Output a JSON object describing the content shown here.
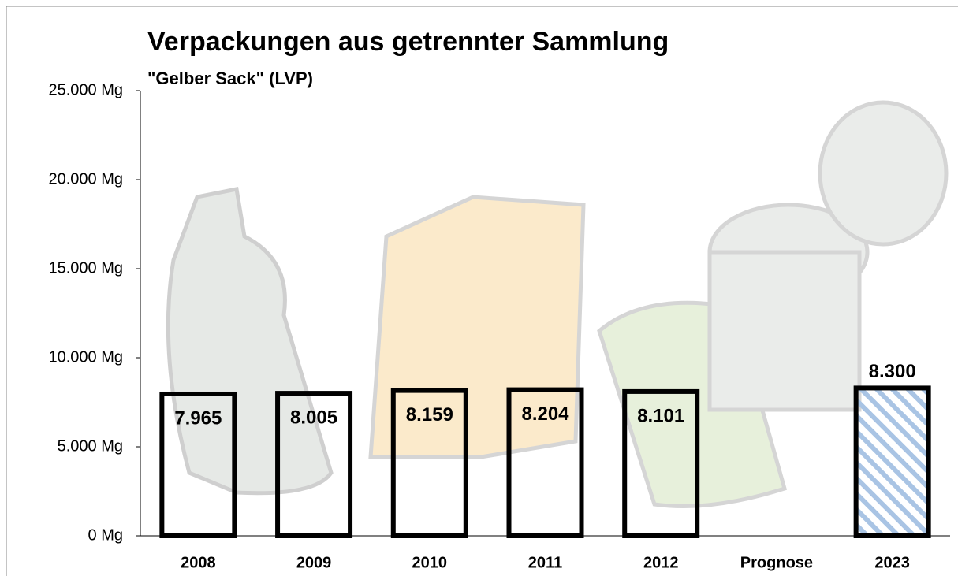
{
  "chart_data": {
    "type": "bar",
    "title": "Verpackungen aus getrennter Sammlung",
    "subtitle": "\"Gelber Sack\" (LVP)",
    "categories": [
      "2008",
      "2009",
      "2010",
      "2011",
      "2012",
      "Prognose",
      "2023"
    ],
    "values": [
      7965,
      8005,
      8159,
      8204,
      8101,
      null,
      8300
    ],
    "value_labels": [
      "7.965",
      "8.005",
      "8.159",
      "8.204",
      "8.101",
      null,
      "8.300"
    ],
    "colors": [
      "transparent",
      "transparent",
      "transparent",
      "transparent",
      "transparent",
      null,
      "#a9c4e4"
    ],
    "ylim": [
      0,
      25000
    ],
    "yticks": [
      {
        "value": 0,
        "label": "0 Mg"
      },
      {
        "value": 5000,
        "label": "5.000 Mg"
      },
      {
        "value": 10000,
        "label": "10.000 Mg"
      },
      {
        "value": 15000,
        "label": "15.000 Mg"
      },
      {
        "value": 20000,
        "label": "20.000 Mg"
      },
      {
        "value": 25000,
        "label": "25.000 Mg"
      }
    ],
    "grid": false
  }
}
